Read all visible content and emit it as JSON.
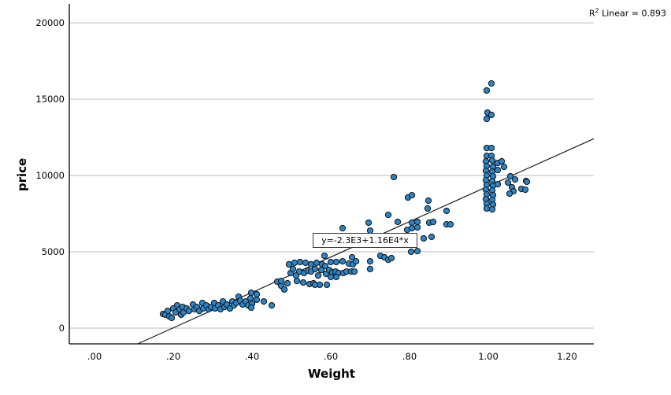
{
  "annotations": {
    "r2_base": "R",
    "r2_sup": "2",
    "r2_rest": " Linear = 0.893",
    "equation_label": "y=-2.3E3+1.16E4*x"
  },
  "colors": {
    "point_fill": "#2787CE",
    "point_stroke": "#1b1b1b",
    "gridline": "#c9c9c9",
    "axis": "#000000",
    "regression_line": "#1a1a1a"
  },
  "chart_data": {
    "type": "scatter",
    "title": "",
    "xlabel": "Weight",
    "ylabel": "price",
    "xlim": [
      -0.064,
      1.268
    ],
    "ylim": [
      -1030,
      21240
    ],
    "grid": "horizontal-only",
    "legend": "none",
    "x_ticks": [
      {
        "label": ".00",
        "value": 0.0
      },
      {
        "label": ".20",
        "value": 0.2
      },
      {
        "label": ".40",
        "value": 0.4
      },
      {
        "label": ".60",
        "value": 0.6
      },
      {
        "label": ".80",
        "value": 0.8
      },
      {
        "label": "1.00",
        "value": 1.0
      },
      {
        "label": "1.20",
        "value": 1.2
      }
    ],
    "y_ticks": [
      {
        "label": "0",
        "value": 0
      },
      {
        "label": "5000",
        "value": 5000
      },
      {
        "label": "10000",
        "value": 10000
      },
      {
        "label": "15000",
        "value": 15000
      },
      {
        "label": "20000",
        "value": 20000
      }
    ],
    "regression": {
      "slope": 11600,
      "intercept": -2300,
      "r2": 0.893,
      "equation": "y=-2.3E3+1.16E4*x"
    },
    "points": [
      [
        0.174,
        930
      ],
      [
        0.18,
        880
      ],
      [
        0.186,
        1130
      ],
      [
        0.19,
        770
      ],
      [
        0.196,
        670
      ],
      [
        0.2,
        1290
      ],
      [
        0.206,
        1030
      ],
      [
        0.21,
        1490
      ],
      [
        0.216,
        1240
      ],
      [
        0.22,
        880
      ],
      [
        0.224,
        1390
      ],
      [
        0.226,
        1030
      ],
      [
        0.234,
        1290
      ],
      [
        0.24,
        1130
      ],
      [
        0.25,
        1550
      ],
      [
        0.254,
        1240
      ],
      [
        0.26,
        1390
      ],
      [
        0.266,
        1130
      ],
      [
        0.274,
        1650
      ],
      [
        0.276,
        1290
      ],
      [
        0.284,
        1490
      ],
      [
        0.29,
        1240
      ],
      [
        0.296,
        1390
      ],
      [
        0.304,
        1650
      ],
      [
        0.306,
        1290
      ],
      [
        0.314,
        1490
      ],
      [
        0.32,
        1240
      ],
      [
        0.326,
        1750
      ],
      [
        0.33,
        1390
      ],
      [
        0.336,
        1550
      ],
      [
        0.344,
        1290
      ],
      [
        0.35,
        1750
      ],
      [
        0.354,
        1490
      ],
      [
        0.36,
        1650
      ],
      [
        0.366,
        2060
      ],
      [
        0.37,
        1800
      ],
      [
        0.376,
        1550
      ],
      [
        0.384,
        1750
      ],
      [
        0.39,
        1490
      ],
      [
        0.398,
        2320
      ],
      [
        0.412,
        2220
      ],
      [
        0.396,
        1960
      ],
      [
        0.412,
        1860
      ],
      [
        0.4,
        1600
      ],
      [
        0.398,
        1340
      ],
      [
        0.43,
        1750
      ],
      [
        0.45,
        1490
      ],
      [
        0.464,
        3040
      ],
      [
        0.474,
        2780
      ],
      [
        0.482,
        2530
      ],
      [
        0.494,
        4180
      ],
      [
        0.508,
        4280
      ],
      [
        0.522,
        4330
      ],
      [
        0.536,
        4280
      ],
      [
        0.55,
        4180
      ],
      [
        0.564,
        4280
      ],
      [
        0.578,
        4180
      ],
      [
        0.586,
        4070
      ],
      [
        0.6,
        4330
      ],
      [
        0.614,
        4330
      ],
      [
        0.63,
        4380
      ],
      [
        0.646,
        4230
      ],
      [
        0.656,
        4180
      ],
      [
        0.498,
        3610
      ],
      [
        0.504,
        3870
      ],
      [
        0.512,
        3450
      ],
      [
        0.52,
        3710
      ],
      [
        0.532,
        3610
      ],
      [
        0.542,
        3760
      ],
      [
        0.55,
        3710
      ],
      [
        0.56,
        3870
      ],
      [
        0.568,
        3450
      ],
      [
        0.576,
        3810
      ],
      [
        0.588,
        3560
      ],
      [
        0.596,
        3810
      ],
      [
        0.604,
        3660
      ],
      [
        0.612,
        3710
      ],
      [
        0.62,
        3610
      ],
      [
        0.632,
        3610
      ],
      [
        0.64,
        3710
      ],
      [
        0.652,
        3710
      ],
      [
        0.66,
        3710
      ],
      [
        0.474,
        3090
      ],
      [
        0.49,
        2940
      ],
      [
        0.514,
        3090
      ],
      [
        0.53,
        2990
      ],
      [
        0.546,
        2890
      ],
      [
        0.556,
        2940
      ],
      [
        0.572,
        2840
      ],
      [
        0.59,
        2840
      ],
      [
        0.56,
        2840
      ],
      [
        0.584,
        4740
      ],
      [
        0.6,
        3350
      ],
      [
        0.614,
        3350
      ],
      [
        0.63,
        6550
      ],
      [
        0.654,
        4640
      ],
      [
        0.664,
        4380
      ],
      [
        0.7,
        4380
      ],
      [
        0.726,
        4740
      ],
      [
        0.736,
        4640
      ],
      [
        0.746,
        4480
      ],
      [
        0.754,
        4590
      ],
      [
        0.7,
        3870
      ],
      [
        0.76,
        9900
      ],
      [
        0.796,
        8560
      ],
      [
        0.806,
        8710
      ],
      [
        0.848,
        8350
      ],
      [
        0.846,
        7840
      ],
      [
        0.894,
        7680
      ],
      [
        0.696,
        6910
      ],
      [
        0.7,
        6390
      ],
      [
        0.746,
        7420
      ],
      [
        0.77,
        6960
      ],
      [
        0.806,
        6910
      ],
      [
        0.82,
        6960
      ],
      [
        0.85,
        6910
      ],
      [
        0.86,
        6960
      ],
      [
        0.894,
        6800
      ],
      [
        0.904,
        6800
      ],
      [
        0.794,
        6440
      ],
      [
        0.806,
        6550
      ],
      [
        0.82,
        6600
      ],
      [
        0.836,
        5880
      ],
      [
        0.856,
        5980
      ],
      [
        0.804,
        5000
      ],
      [
        0.82,
        5050
      ],
      [
        1.008,
        16030
      ],
      [
        0.996,
        15570
      ],
      [
        0.998,
        14120
      ],
      [
        1.008,
        13970
      ],
      [
        0.996,
        13710
      ],
      [
        0.996,
        11800
      ],
      [
        1.008,
        11800
      ],
      [
        0.996,
        11290
      ],
      [
        1.008,
        11290
      ],
      [
        0.994,
        10930
      ],
      [
        1.01,
        10980
      ],
      [
        1.024,
        10820
      ],
      [
        0.996,
        10620
      ],
      [
        1.012,
        10570
      ],
      [
        0.994,
        10310
      ],
      [
        1.01,
        10260
      ],
      [
        1.024,
        10360
      ],
      [
        0.996,
        10000
      ],
      [
        1.012,
        9950
      ],
      [
        0.994,
        9690
      ],
      [
        1.01,
        9640
      ],
      [
        0.996,
        9380
      ],
      [
        1.012,
        9330
      ],
      [
        1.024,
        9430
      ],
      [
        0.994,
        9070
      ],
      [
        1.01,
        9020
      ],
      [
        0.996,
        8760
      ],
      [
        1.012,
        8710
      ],
      [
        0.994,
        8450
      ],
      [
        1.01,
        8400
      ],
      [
        0.996,
        8140
      ],
      [
        1.012,
        8090
      ],
      [
        0.996,
        7840
      ],
      [
        1.01,
        7780
      ],
      [
        1.034,
        10930
      ],
      [
        1.04,
        10570
      ],
      [
        1.056,
        9950
      ],
      [
        1.068,
        9740
      ],
      [
        1.05,
        9540
      ],
      [
        1.06,
        9230
      ],
      [
        1.084,
        9120
      ],
      [
        1.096,
        9640
      ],
      [
        1.064,
        8970
      ],
      [
        1.054,
        8810
      ],
      [
        1.098,
        9590
      ],
      [
        1.094,
        9070
      ]
    ]
  }
}
